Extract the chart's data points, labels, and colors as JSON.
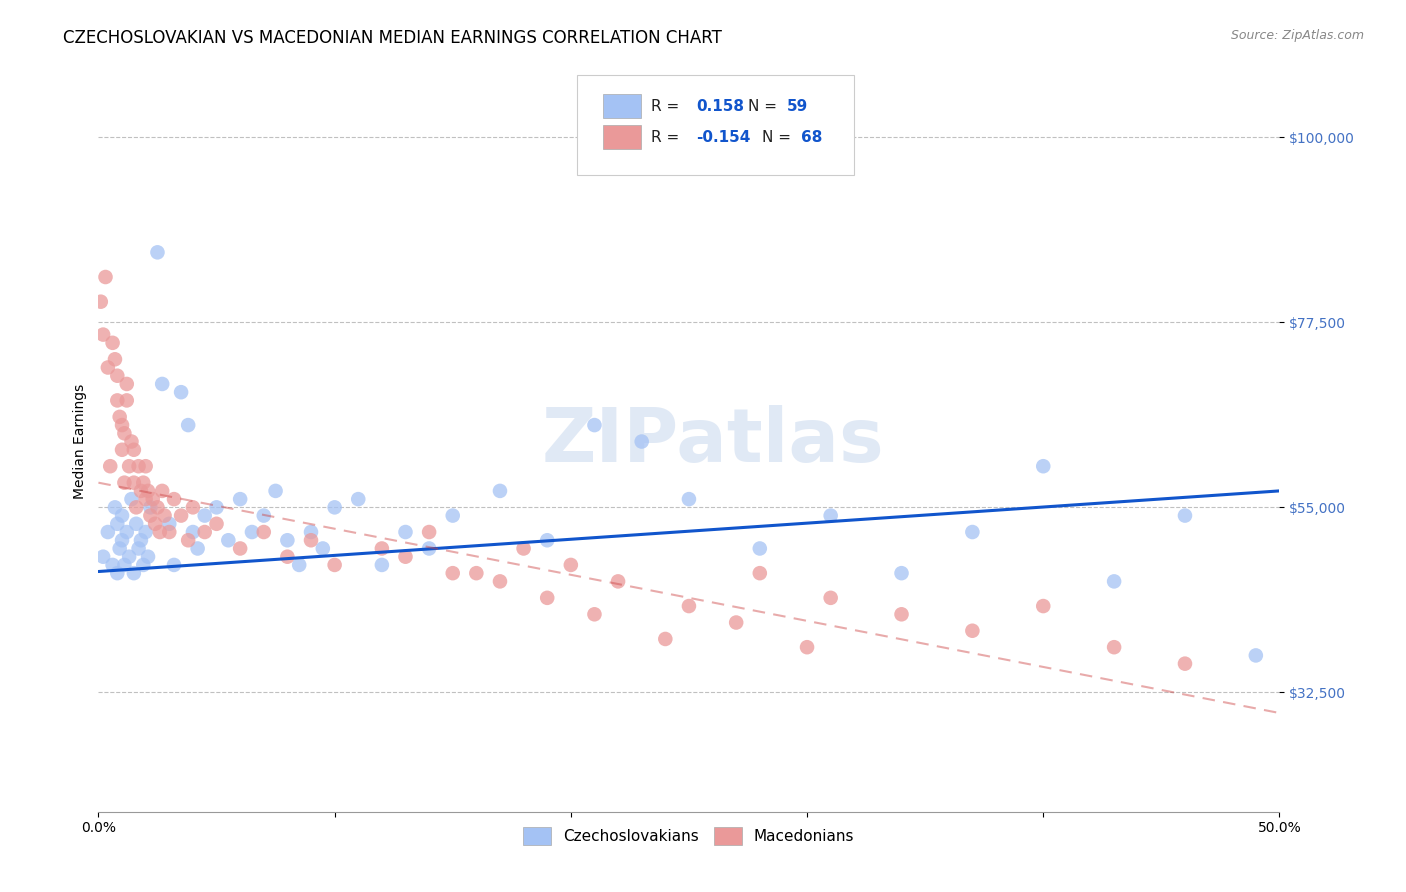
{
  "title": "CZECHOSLOVAKIAN VS MACEDONIAN MEDIAN EARNINGS CORRELATION CHART",
  "source": "Source: ZipAtlas.com",
  "ylabel": "Median Earnings",
  "yticks": [
    32500,
    55000,
    77500,
    100000
  ],
  "ytick_labels": [
    "$32,500",
    "$55,000",
    "$77,500",
    "$100,000"
  ],
  "xlim": [
    0.0,
    0.5
  ],
  "ylim": [
    18000,
    108000
  ],
  "blue_color": "#a4c2f4",
  "pink_color": "#ea9999",
  "blue_line_color": "#1155cc",
  "pink_line_color": "#cc4444",
  "tick_color": "#4472c4",
  "title_fontsize": 12,
  "axis_label_fontsize": 10,
  "tick_fontsize": 10,
  "watermark": "ZIPatlas",
  "blue_r": "0.158",
  "blue_n": "59",
  "pink_r": "-0.154",
  "pink_n": "68",
  "blue_scatter_x": [
    0.002,
    0.004,
    0.006,
    0.007,
    0.008,
    0.008,
    0.009,
    0.01,
    0.01,
    0.011,
    0.012,
    0.013,
    0.014,
    0.015,
    0.016,
    0.017,
    0.018,
    0.019,
    0.02,
    0.021,
    0.022,
    0.025,
    0.027,
    0.03,
    0.032,
    0.035,
    0.038,
    0.04,
    0.042,
    0.045,
    0.05,
    0.055,
    0.06,
    0.065,
    0.07,
    0.075,
    0.08,
    0.085,
    0.09,
    0.095,
    0.1,
    0.11,
    0.12,
    0.13,
    0.14,
    0.15,
    0.17,
    0.19,
    0.21,
    0.23,
    0.25,
    0.28,
    0.31,
    0.34,
    0.37,
    0.4,
    0.43,
    0.46,
    0.49
  ],
  "blue_scatter_y": [
    49000,
    52000,
    48000,
    55000,
    47000,
    53000,
    50000,
    51000,
    54000,
    48000,
    52000,
    49000,
    56000,
    47000,
    53000,
    50000,
    51000,
    48000,
    52000,
    49000,
    55000,
    86000,
    70000,
    53000,
    48000,
    69000,
    65000,
    52000,
    50000,
    54000,
    55000,
    51000,
    56000,
    52000,
    54000,
    57000,
    51000,
    48000,
    52000,
    50000,
    55000,
    56000,
    48000,
    52000,
    50000,
    54000,
    57000,
    51000,
    65000,
    63000,
    56000,
    50000,
    54000,
    47000,
    52000,
    60000,
    46000,
    54000,
    37000
  ],
  "pink_scatter_x": [
    0.001,
    0.002,
    0.003,
    0.004,
    0.005,
    0.006,
    0.007,
    0.008,
    0.008,
    0.009,
    0.01,
    0.01,
    0.011,
    0.011,
    0.012,
    0.012,
    0.013,
    0.014,
    0.015,
    0.015,
    0.016,
    0.017,
    0.018,
    0.019,
    0.02,
    0.02,
    0.021,
    0.022,
    0.023,
    0.024,
    0.025,
    0.026,
    0.027,
    0.028,
    0.03,
    0.032,
    0.035,
    0.038,
    0.04,
    0.045,
    0.05,
    0.06,
    0.07,
    0.08,
    0.09,
    0.1,
    0.12,
    0.14,
    0.16,
    0.18,
    0.2,
    0.22,
    0.25,
    0.28,
    0.31,
    0.34,
    0.37,
    0.4,
    0.43,
    0.46,
    0.13,
    0.15,
    0.17,
    0.19,
    0.21,
    0.24,
    0.27,
    0.3
  ],
  "pink_scatter_y": [
    80000,
    76000,
    83000,
    72000,
    60000,
    75000,
    73000,
    68000,
    71000,
    66000,
    62000,
    65000,
    64000,
    58000,
    70000,
    68000,
    60000,
    63000,
    62000,
    58000,
    55000,
    60000,
    57000,
    58000,
    56000,
    60000,
    57000,
    54000,
    56000,
    53000,
    55000,
    52000,
    57000,
    54000,
    52000,
    56000,
    54000,
    51000,
    55000,
    52000,
    53000,
    50000,
    52000,
    49000,
    51000,
    48000,
    50000,
    52000,
    47000,
    50000,
    48000,
    46000,
    43000,
    47000,
    44000,
    42000,
    40000,
    43000,
    38000,
    36000,
    49000,
    47000,
    46000,
    44000,
    42000,
    39000,
    41000,
    38000
  ]
}
